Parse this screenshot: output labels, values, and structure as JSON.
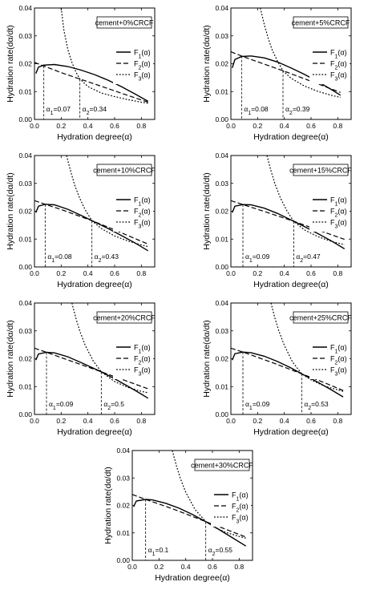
{
  "chart_data": [
    {
      "type": "line",
      "label": "cement+0%CRCF",
      "xlabel": "Hydration degree(α)",
      "ylabel": "Hydration rate(dα/dt)",
      "xlim": [
        0,
        0.9
      ],
      "ylim": [
        0,
        0.04
      ],
      "xticks": [
        "0.0",
        "0.2",
        "0.4",
        "0.6",
        "0.8"
      ],
      "yticks": [
        "0.00",
        "0.01",
        "0.02",
        "0.03",
        "0.04"
      ],
      "legend": [
        "F1(α)",
        "F2(α)",
        "F3(α)"
      ],
      "legend_position": "right",
      "grid": false,
      "annotations": [
        {
          "text": "α1=0.07",
          "x": 0.07
        },
        {
          "text": "α2=0.34",
          "x": 0.34
        }
      ],
      "series": [
        {
          "name": "F1(α)",
          "style": "solid",
          "x": [
            0.01,
            0.03,
            0.07,
            0.15,
            0.25,
            0.35,
            0.45,
            0.55,
            0.65,
            0.75,
            0.85
          ],
          "y": [
            0.0165,
            0.0188,
            0.0195,
            0.0197,
            0.019,
            0.0177,
            0.0161,
            0.0141,
            0.0118,
            0.0092,
            0.0065
          ]
        },
        {
          "name": "F2(α)",
          "style": "dashed",
          "x": [
            0.0,
            0.07,
            0.2,
            0.34,
            0.5,
            0.7,
            0.85
          ],
          "y": [
            0.0205,
            0.0192,
            0.0168,
            0.0145,
            0.0119,
            0.0086,
            0.0062
          ]
        },
        {
          "name": "F3(α)",
          "style": "dotted",
          "x": [
            0.2,
            0.22,
            0.25,
            0.28,
            0.31,
            0.34,
            0.4,
            0.5,
            0.6,
            0.7,
            0.8,
            0.85
          ],
          "y": [
            0.04,
            0.032,
            0.025,
            0.0205,
            0.017,
            0.0145,
            0.0118,
            0.0095,
            0.0082,
            0.0071,
            0.0062,
            0.0058
          ]
        }
      ]
    },
    {
      "type": "line",
      "label": "cement+5%CRCF",
      "xlabel": "Hydration degree(α)",
      "ylabel": "Hydration rate(dα/dt)",
      "xlim": [
        0,
        0.9
      ],
      "ylim": [
        0,
        0.04
      ],
      "xticks": [
        "0.0",
        "0.2",
        "0.4",
        "0.6",
        "0.8"
      ],
      "yticks": [
        "0.00",
        "0.01",
        "0.02",
        "0.03",
        "0.04"
      ],
      "legend": [
        "F1(α)",
        "F2(α)",
        "F3(α)"
      ],
      "legend_position": "right",
      "grid": false,
      "annotations": [
        {
          "text": "α1=0.08",
          "x": 0.08
        },
        {
          "text": "α2=0.39",
          "x": 0.39
        }
      ],
      "series": [
        {
          "name": "F1(α)",
          "style": "solid",
          "x": [
            0.01,
            0.03,
            0.08,
            0.15,
            0.25,
            0.35,
            0.45,
            0.55,
            0.65,
            0.75,
            0.82
          ],
          "y": [
            0.0185,
            0.0215,
            0.0226,
            0.0228,
            0.0221,
            0.0206,
            0.0185,
            0.0162,
            0.0136,
            0.0108,
            0.0087
          ]
        },
        {
          "name": "F2(α)",
          "style": "dashed",
          "x": [
            0.0,
            0.08,
            0.2,
            0.39,
            0.6,
            0.82
          ],
          "y": [
            0.0243,
            0.0228,
            0.0207,
            0.0175,
            0.0137,
            0.0097
          ]
        },
        {
          "name": "F3(α)",
          "style": "dotted",
          "x": [
            0.22,
            0.25,
            0.28,
            0.31,
            0.35,
            0.39,
            0.45,
            0.55,
            0.65,
            0.75,
            0.82
          ],
          "y": [
            0.04,
            0.034,
            0.029,
            0.0248,
            0.0208,
            0.0175,
            0.0148,
            0.012,
            0.0101,
            0.0087,
            0.0079
          ]
        }
      ]
    },
    {
      "type": "line",
      "label": "cement+10%CRCF",
      "xlabel": "Hydration degree(α)",
      "ylabel": "Hydration rate(dα/dt)",
      "xlim": [
        0,
        0.9
      ],
      "ylim": [
        0,
        0.04
      ],
      "xticks": [
        "0.0",
        "0.2",
        "0.4",
        "0.6",
        "0.8"
      ],
      "yticks": [
        "0.00",
        "0.01",
        "0.02",
        "0.03",
        "0.04"
      ],
      "legend": [
        "F1(α)",
        "F2(α)",
        "F3(α)"
      ],
      "legend_position": "right",
      "grid": false,
      "annotations": [
        {
          "text": "α1=0.08",
          "x": 0.08
        },
        {
          "text": "α2=0.43",
          "x": 0.43
        }
      ],
      "series": [
        {
          "name": "F1(α)",
          "style": "solid",
          "x": [
            0.01,
            0.03,
            0.08,
            0.15,
            0.25,
            0.35,
            0.43,
            0.55,
            0.65,
            0.75,
            0.85
          ],
          "y": [
            0.0195,
            0.0218,
            0.0225,
            0.0223,
            0.0207,
            0.0185,
            0.0166,
            0.0138,
            0.0113,
            0.0087,
            0.0058
          ]
        },
        {
          "name": "F2(α)",
          "style": "dashed",
          "x": [
            0.0,
            0.08,
            0.2,
            0.43,
            0.6,
            0.85
          ],
          "y": [
            0.0238,
            0.0225,
            0.0206,
            0.0166,
            0.0133,
            0.0082
          ]
        },
        {
          "name": "F3(α)",
          "style": "dotted",
          "x": [
            0.24,
            0.27,
            0.3,
            0.34,
            0.38,
            0.43,
            0.5,
            0.6,
            0.7,
            0.8,
            0.85
          ],
          "y": [
            0.04,
            0.0345,
            0.0295,
            0.0245,
            0.0205,
            0.0166,
            0.0138,
            0.0111,
            0.0093,
            0.0079,
            0.0073
          ]
        }
      ]
    },
    {
      "type": "line",
      "label": "cement+15%CRCF",
      "xlabel": "Hydration degree(α)",
      "ylabel": "Hydration rate(dα/dt)",
      "xlim": [
        0,
        0.9
      ],
      "ylim": [
        0,
        0.04
      ],
      "xticks": [
        "0.0",
        "0.2",
        "0.4",
        "0.6",
        "0.8"
      ],
      "yticks": [
        "0.00",
        "0.01",
        "0.02",
        "0.03",
        "0.04"
      ],
      "legend": [
        "F1(α)",
        "F2(α)",
        "F3(α)"
      ],
      "legend_position": "right",
      "grid": false,
      "annotations": [
        {
          "text": "α1=0.09",
          "x": 0.09
        },
        {
          "text": "α2=0.47",
          "x": 0.47
        }
      ],
      "series": [
        {
          "name": "F1(α)",
          "style": "solid",
          "x": [
            0.01,
            0.03,
            0.09,
            0.15,
            0.25,
            0.35,
            0.47,
            0.55,
            0.65,
            0.75,
            0.85
          ],
          "y": [
            0.0195,
            0.0218,
            0.0224,
            0.0223,
            0.0211,
            0.0192,
            0.0164,
            0.0145,
            0.012,
            0.0094,
            0.0065
          ]
        },
        {
          "name": "F2(α)",
          "style": "dashed",
          "x": [
            0.0,
            0.09,
            0.25,
            0.47,
            0.65,
            0.85
          ],
          "y": [
            0.0238,
            0.0224,
            0.0199,
            0.0164,
            0.0133,
            0.0099
          ]
        },
        {
          "name": "F3(α)",
          "style": "dotted",
          "x": [
            0.27,
            0.3,
            0.33,
            0.37,
            0.42,
            0.47,
            0.55,
            0.65,
            0.75,
            0.85
          ],
          "y": [
            0.04,
            0.0345,
            0.0298,
            0.0248,
            0.0201,
            0.0164,
            0.0133,
            0.0109,
            0.0092,
            0.008
          ]
        }
      ]
    },
    {
      "type": "line",
      "label": "cement+20%CRCF",
      "xlabel": "Hydration degree(α)",
      "ylabel": "Hydration rate(dα/dt)",
      "xlim": [
        0,
        0.9
      ],
      "ylim": [
        0,
        0.04
      ],
      "xticks": [
        "0.0",
        "0.2",
        "0.4",
        "0.6",
        "0.8"
      ],
      "yticks": [
        "0.00",
        "0.01",
        "0.02",
        "0.03",
        "0.04"
      ],
      "legend": [
        "F1(α)",
        "F2(α)",
        "F3(α)"
      ],
      "legend_position": "right",
      "grid": false,
      "annotations": [
        {
          "text": "α1=0.09",
          "x": 0.09
        },
        {
          "text": "α2=0.5",
          "x": 0.5
        }
      ],
      "series": [
        {
          "name": "F1(α)",
          "style": "solid",
          "x": [
            0.01,
            0.03,
            0.09,
            0.15,
            0.25,
            0.35,
            0.5,
            0.6,
            0.7,
            0.8,
            0.85
          ],
          "y": [
            0.0195,
            0.0217,
            0.0223,
            0.0221,
            0.0207,
            0.0186,
            0.0153,
            0.0128,
            0.0101,
            0.0073,
            0.0058
          ]
        },
        {
          "name": "F2(α)",
          "style": "dashed",
          "x": [
            0.0,
            0.09,
            0.3,
            0.5,
            0.7,
            0.85
          ],
          "y": [
            0.0238,
            0.0223,
            0.0187,
            0.0153,
            0.0118,
            0.0092
          ]
        },
        {
          "name": "F3(α)",
          "style": "dotted",
          "x": [
            0.28,
            0.31,
            0.34,
            0.38,
            0.44,
            0.5,
            0.6,
            0.7,
            0.8,
            0.85
          ],
          "y": [
            0.04,
            0.0345,
            0.0298,
            0.0248,
            0.0192,
            0.0153,
            0.0118,
            0.0097,
            0.0083,
            0.0078
          ]
        }
      ]
    },
    {
      "type": "line",
      "label": "cement+25%CRCF",
      "xlabel": "Hydration degree(α)",
      "ylabel": "Hydration rate(dα/dt)",
      "xlim": [
        0,
        0.9
      ],
      "ylim": [
        0,
        0.04
      ],
      "xticks": [
        "0.0",
        "0.2",
        "0.4",
        "0.6",
        "0.8"
      ],
      "yticks": [
        "0.00",
        "0.01",
        "0.02",
        "0.03",
        "0.04"
      ],
      "legend": [
        "F1(α)",
        "F2(α)",
        "F3(α)"
      ],
      "legend_position": "right",
      "grid": false,
      "annotations": [
        {
          "text": "α1=0.09",
          "x": 0.09
        },
        {
          "text": "α2=0.53",
          "x": 0.53
        }
      ],
      "series": [
        {
          "name": "F1(α)",
          "style": "solid",
          "x": [
            0.01,
            0.03,
            0.09,
            0.15,
            0.25,
            0.35,
            0.45,
            0.53,
            0.65,
            0.75,
            0.84
          ],
          "y": [
            0.0195,
            0.0218,
            0.0224,
            0.0222,
            0.0209,
            0.019,
            0.0167,
            0.0146,
            0.0116,
            0.0089,
            0.0063
          ]
        },
        {
          "name": "F2(α)",
          "style": "dashed",
          "x": [
            0.0,
            0.09,
            0.3,
            0.53,
            0.7,
            0.84
          ],
          "y": [
            0.0238,
            0.0224,
            0.0188,
            0.0146,
            0.0114,
            0.0086
          ]
        },
        {
          "name": "F3(α)",
          "style": "dotted",
          "x": [
            0.3,
            0.33,
            0.36,
            0.4,
            0.46,
            0.53,
            0.6,
            0.7,
            0.8,
            0.84
          ],
          "y": [
            0.04,
            0.0345,
            0.0298,
            0.0248,
            0.0189,
            0.0146,
            0.0124,
            0.0102,
            0.0088,
            0.0083
          ]
        }
      ]
    },
    {
      "type": "line",
      "label": "cement+30%CRCF",
      "xlabel": "Hydration degree(α)",
      "ylabel": "Hydration rate(dα/dt)",
      "xlim": [
        0,
        0.9
      ],
      "ylim": [
        0,
        0.04
      ],
      "xticks": [
        "0.0",
        "0.2",
        "0.4",
        "0.6",
        "0.8"
      ],
      "yticks": [
        "0.00",
        "0.01",
        "0.02",
        "0.03",
        "0.04"
      ],
      "legend": [
        "F1(α)",
        "F2(α)",
        "F3(α)"
      ],
      "legend_position": "right",
      "grid": false,
      "annotations": [
        {
          "text": "α1=0.1",
          "x": 0.1
        },
        {
          "text": "α2=0.55",
          "x": 0.55
        }
      ],
      "series": [
        {
          "name": "F1(α)",
          "style": "solid",
          "x": [
            0.01,
            0.03,
            0.1,
            0.15,
            0.25,
            0.35,
            0.45,
            0.55,
            0.65,
            0.75,
            0.85
          ],
          "y": [
            0.0195,
            0.0216,
            0.0222,
            0.022,
            0.0208,
            0.019,
            0.0167,
            0.0141,
            0.0112,
            0.0082,
            0.0052
          ]
        },
        {
          "name": "F2(α)",
          "style": "dashed",
          "x": [
            0.0,
            0.1,
            0.3,
            0.55,
            0.7,
            0.85
          ],
          "y": [
            0.024,
            0.0222,
            0.0188,
            0.0141,
            0.0113,
            0.0085
          ]
        },
        {
          "name": "F3(α)",
          "style": "dotted",
          "x": [
            0.3,
            0.33,
            0.36,
            0.4,
            0.47,
            0.55,
            0.62,
            0.7,
            0.8,
            0.85
          ],
          "y": [
            0.04,
            0.0345,
            0.0298,
            0.0248,
            0.0185,
            0.0141,
            0.0119,
            0.0102,
            0.0087,
            0.0081
          ]
        }
      ]
    }
  ]
}
